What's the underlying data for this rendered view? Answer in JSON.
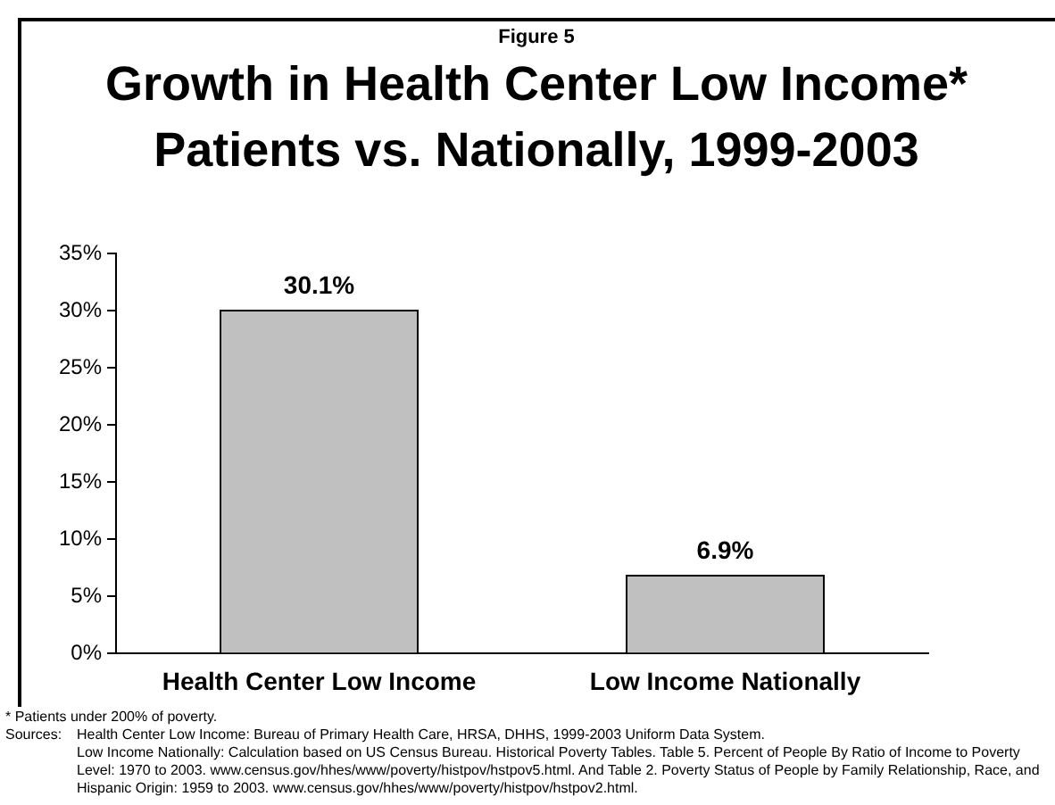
{
  "chart_data": {
    "type": "bar",
    "subtitle": "Figure 5",
    "title": "Growth in Health Center Low Income* Patients vs. Nationally, 1999-2003",
    "categories": [
      "Health Center Low Income",
      "Low Income Nationally"
    ],
    "values": [
      30.1,
      6.9
    ],
    "value_labels": [
      "30.1%",
      "6.9%"
    ],
    "color": "#c0c0c0",
    "ylim": [
      0,
      35
    ],
    "yticks": [
      {
        "value": 0,
        "label": "0%"
      },
      {
        "value": 5,
        "label": "5%"
      },
      {
        "value": 10,
        "label": "10%"
      },
      {
        "value": 15,
        "label": "15%"
      },
      {
        "value": 20,
        "label": "20%"
      },
      {
        "value": 25,
        "label": "25%"
      },
      {
        "value": 30,
        "label": "30%"
      },
      {
        "value": 35,
        "label": "35%"
      }
    ],
    "grid": false,
    "legend": false,
    "annotations": [
      "* Patients under 200% of poverty.",
      "Sources:",
      "Health Center Low Income:  Bureau of Primary Health Care, HRSA, DHHS, 1999-2003 Uniform Data System.",
      "Low Income Nationally:  Calculation based on US Census Bureau.  Historical Poverty Tables.  Table 5. Percent of People By Ratio of Income to Poverty Level: 1970 to 2003.  www.census.gov/hhes/www/poverty/histpov/hstpov5.html. And Table 2. Poverty Status of People by Family Relationship, Race, and Hispanic Origin: 1959 to 2003.  www.census.gov/hhes/www/poverty/histpov/hstpov2.html."
    ]
  }
}
